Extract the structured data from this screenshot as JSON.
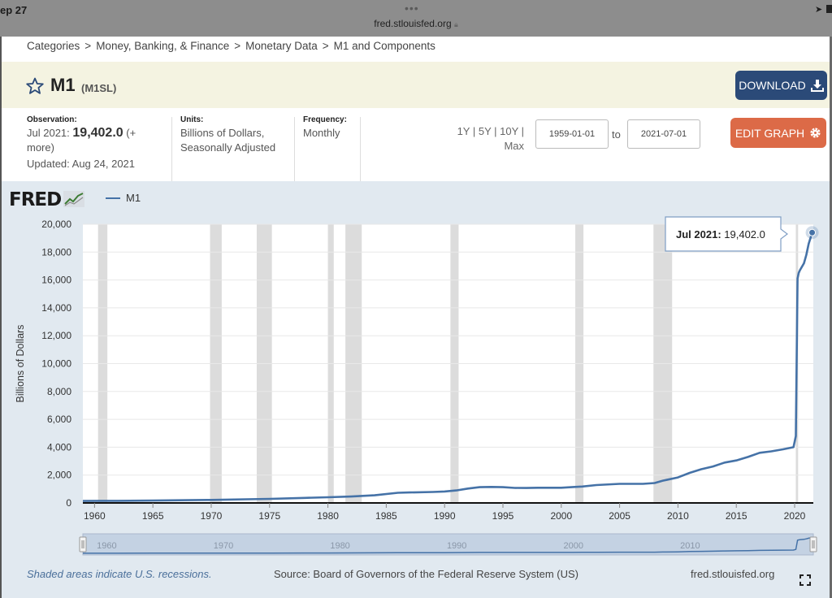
{
  "browser": {
    "time": "ep 27",
    "url": "fred.stlouisfed.org"
  },
  "breadcrumb": [
    "Categories",
    "Money, Banking, & Finance",
    "Monetary Data",
    "M1 and Components"
  ],
  "series": {
    "title": "M1",
    "id": "(M1SL)"
  },
  "buttons": {
    "download": "DOWNLOAD",
    "edit_graph": "EDIT GRAPH"
  },
  "meta": {
    "observation_label": "Observation:",
    "observation_date": "Jul 2021:",
    "observation_value": "19,402.0",
    "observation_more_1": "(+",
    "observation_more_2": "more)",
    "updated": "Updated: Aug 24, 2021",
    "units_label": "Units:",
    "units_1": "Billions of Dollars,",
    "units_2": "Seasonally Adjusted",
    "frequency_label": "Frequency:",
    "frequency": "Monthly"
  },
  "date_range": {
    "ranges_line1": "1Y | 5Y | 10Y |",
    "ranges_line2": "Max",
    "start": "1959-01-01",
    "to": "to",
    "end": "2021-07-01"
  },
  "logo": "FRED",
  "footer": {
    "note": "Shaded areas indicate U.S. recessions.",
    "source": "Source: Board of Governors of the Federal Reserve System (US)",
    "site": "fred.stlouisfed.org"
  },
  "colors": {
    "series": "#4572a7",
    "recession": "#dcdcdc",
    "download_button": "#2b4a78",
    "edit_button": "#dc6a47",
    "title_band": "#f4f3e1",
    "panel": "#e1e9f0"
  },
  "chart_data": {
    "type": "line",
    "title": "",
    "xlabel": "",
    "ylabel": "Billions of Dollars",
    "xlim": [
      1959.0,
      2021.6
    ],
    "ylim": [
      0,
      20000
    ],
    "yticks": [
      0,
      2000,
      4000,
      6000,
      8000,
      10000,
      12000,
      14000,
      16000,
      18000,
      20000
    ],
    "ytick_labels": [
      "0",
      "2,000",
      "4,000",
      "6,000",
      "8,000",
      "10,000",
      "12,000",
      "14,000",
      "16,000",
      "18,000",
      "20,000"
    ],
    "xticks": [
      1960,
      1965,
      1970,
      1975,
      1980,
      1985,
      1990,
      1995,
      2000,
      2005,
      2010,
      2015,
      2020
    ],
    "navigator_labels": [
      "1960",
      "1970",
      "1980",
      "1990",
      "2000",
      "2010"
    ],
    "legend": "top-left",
    "recessions": [
      [
        1960.3,
        1961.1
      ],
      [
        1969.9,
        1970.9
      ],
      [
        1973.9,
        1975.2
      ],
      [
        1980.0,
        1980.5
      ],
      [
        1981.5,
        1982.9
      ],
      [
        1990.5,
        1991.2
      ],
      [
        2001.2,
        2001.9
      ],
      [
        2007.9,
        2009.5
      ],
      [
        2020.1,
        2020.3
      ]
    ],
    "tooltip": {
      "label": "Jul 2021:",
      "value": "19,402.0"
    },
    "series": [
      {
        "name": "M1",
        "x": [
          1959.0,
          1962,
          1965,
          1968,
          1970,
          1973,
          1975,
          1978,
          1980,
          1982,
          1984,
          1986,
          1987,
          1989,
          1990,
          1991,
          1992,
          1993,
          1994,
          1995,
          1996,
          1997,
          1998,
          2000,
          2001,
          2001.8,
          2003,
          2005,
          2007,
          2008,
          2008.7,
          2009,
          2010,
          2011,
          2012,
          2013,
          2014,
          2015,
          2016,
          2017,
          2018,
          2019,
          2019.9,
          2020.1,
          2020.25,
          2020.35,
          2020.45,
          2020.8,
          2021.0,
          2021.2,
          2021.5
        ],
        "values": [
          140,
          150,
          170,
          200,
          215,
          260,
          290,
          360,
          410,
          460,
          550,
          730,
          750,
          790,
          820,
          900,
          1030,
          1130,
          1150,
          1130,
          1080,
          1070,
          1090,
          1090,
          1140,
          1180,
          1280,
          1370,
          1370,
          1430,
          1600,
          1650,
          1830,
          2160,
          2420,
          2620,
          2900,
          3050,
          3300,
          3600,
          3700,
          3850,
          4000,
          4800,
          16100,
          16500,
          16700,
          17200,
          17800,
          18600,
          19402
        ]
      }
    ]
  }
}
